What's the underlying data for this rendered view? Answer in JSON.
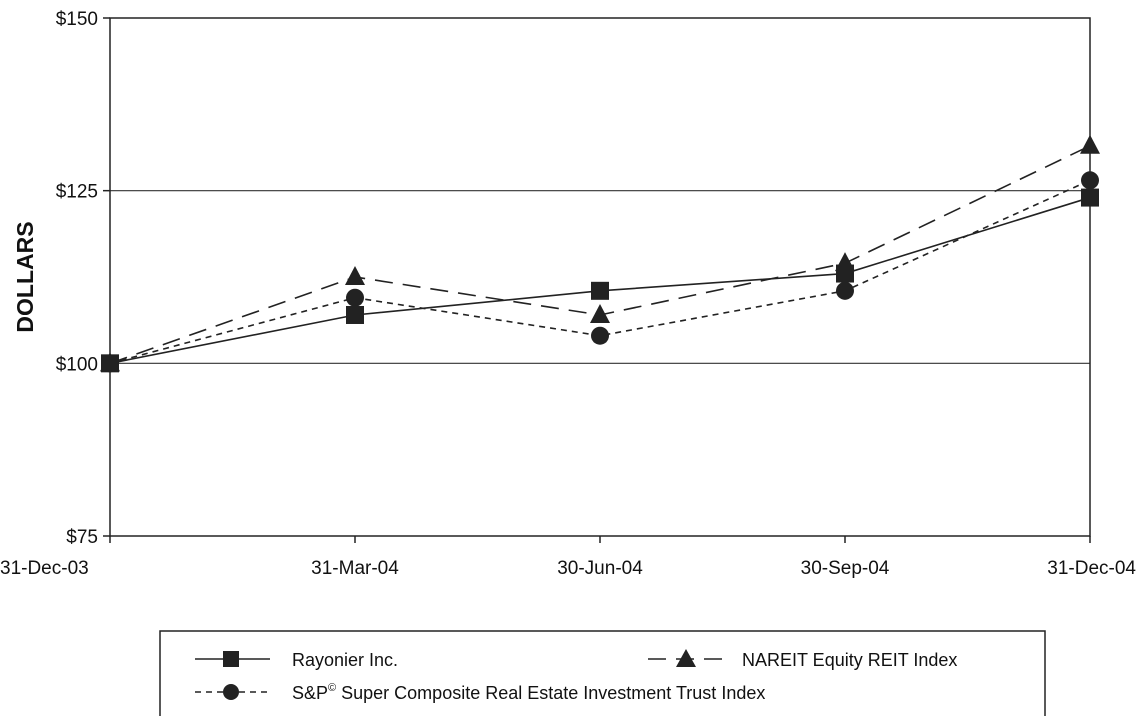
{
  "chart_data": {
    "type": "line",
    "ylabel": "DOLLARS",
    "xlabel": "",
    "title": "",
    "categories": [
      "31-Dec-03",
      "31-Mar-04",
      "30-Jun-04",
      "30-Sep-04",
      "31-Dec-04"
    ],
    "ylim": [
      75,
      150
    ],
    "y_ticks": [
      75,
      100,
      125,
      150
    ],
    "y_tick_labels": [
      "$75",
      "$100",
      "$125",
      "$150"
    ],
    "gridlines_at": [
      100,
      125
    ],
    "legend_position": "bottom",
    "series": [
      {
        "name": "Rayonier Inc.",
        "marker": "square",
        "line_style": "solid",
        "values": [
          100,
          107,
          110.5,
          113,
          124
        ]
      },
      {
        "name": "NAREIT Equity REIT Index",
        "marker": "triangle",
        "line_style": "long-dash",
        "values": [
          100,
          112.5,
          107,
          114.5,
          131.5
        ]
      },
      {
        "name": "S&P",
        "name_superscript": "©",
        "name_rest": " Super Composite Real Estate Investment Trust Index",
        "marker": "circle",
        "line_style": "short-dash",
        "values": [
          100,
          109.5,
          104,
          110.5,
          126.5
        ]
      }
    ]
  }
}
